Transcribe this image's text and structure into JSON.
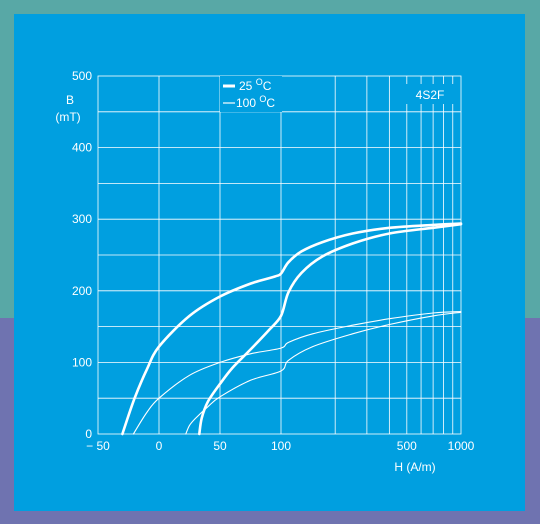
{
  "colors": {
    "background": "#009fe0",
    "frame_top": "#58a8a6",
    "frame_bottom": "#6f73b0",
    "ink": "#ffffff"
  },
  "chart_data": {
    "type": "line",
    "title": "4S2F",
    "ylabel_line1": "B",
    "ylabel_line2": "(mT)",
    "xlabel": "H  (A/m)",
    "ylim": [
      0,
      500
    ],
    "x_scale": "linear from -50 to 100, logarithmic from 100 to 1000",
    "grid": true,
    "legend_position": "top-center",
    "x_ticks": [
      "− 50",
      "0",
      "50",
      "100",
      "500",
      "1000"
    ],
    "y_ticks": [
      "0",
      "100",
      "200",
      "300",
      "400",
      "500"
    ],
    "legend": [
      {
        "label": "25 °C",
        "label_base": "25 ",
        "label_sup": "O",
        "label_unit": "C",
        "style": "thick"
      },
      {
        "label": "100 °C",
        "label_base": "100 ",
        "label_sup": "O",
        "label_unit": "C",
        "style": "thin"
      }
    ],
    "series": [
      {
        "name": "25 °C",
        "branch": "descending",
        "width": "thick",
        "points": [
          [
            -30,
            0
          ],
          [
            -20,
            50
          ],
          [
            -10,
            90
          ],
          [
            0,
            122
          ],
          [
            25,
            165
          ],
          [
            50,
            192
          ],
          [
            75,
            210
          ],
          [
            95,
            220
          ],
          [
            100,
            224
          ],
          [
            110,
            240
          ],
          [
            130,
            255
          ],
          [
            170,
            268
          ],
          [
            250,
            280
          ],
          [
            400,
            288
          ],
          [
            700,
            292
          ],
          [
            1000,
            294
          ]
        ]
      },
      {
        "name": "25 °C",
        "branch": "ascending",
        "width": "thick",
        "points": [
          [
            33,
            0
          ],
          [
            35,
            22
          ],
          [
            40,
            45
          ],
          [
            50,
            70
          ],
          [
            60,
            92
          ],
          [
            75,
            118
          ],
          [
            90,
            145
          ],
          [
            100,
            165
          ],
          [
            110,
            198
          ],
          [
            130,
            225
          ],
          [
            170,
            248
          ],
          [
            250,
            266
          ],
          [
            400,
            280
          ],
          [
            700,
            288
          ],
          [
            1000,
            293
          ]
        ]
      },
      {
        "name": "100 °C",
        "branch": "descending",
        "width": "thin",
        "points": [
          [
            -21,
            0
          ],
          [
            -10,
            30
          ],
          [
            0,
            50
          ],
          [
            25,
            82
          ],
          [
            50,
            100
          ],
          [
            75,
            112
          ],
          [
            100,
            120
          ],
          [
            110,
            128
          ],
          [
            150,
            140
          ],
          [
            250,
            152
          ],
          [
            400,
            161
          ],
          [
            700,
            169
          ],
          [
            1000,
            171
          ]
        ]
      },
      {
        "name": "100 °C",
        "branch": "ascending",
        "width": "thin",
        "points": [
          [
            22,
            0
          ],
          [
            25,
            12
          ],
          [
            30,
            22
          ],
          [
            40,
            38
          ],
          [
            50,
            52
          ],
          [
            75,
            75
          ],
          [
            100,
            88
          ],
          [
            110,
            103
          ],
          [
            150,
            122
          ],
          [
            250,
            140
          ],
          [
            400,
            153
          ],
          [
            700,
            165
          ],
          [
            1000,
            170
          ]
        ]
      }
    ]
  }
}
